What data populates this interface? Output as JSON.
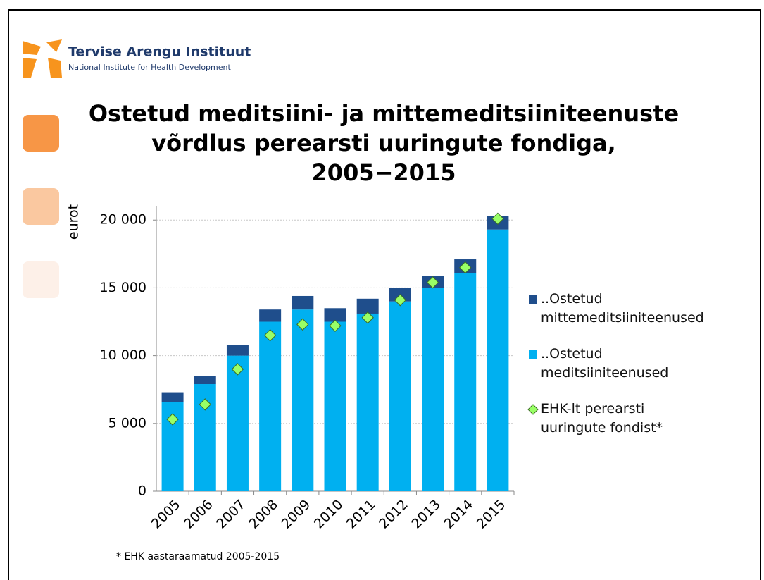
{
  "header": {
    "org_name": "Tervise Arengu Instituut",
    "org_subtitle": "National Institute for Health Development"
  },
  "chart_data": {
    "type": "stacked_bar",
    "title": "Ostetud meditsiini- ja mittemeditsiiniteenuste\nvõrdlus perearsti uuringute fondiga,\n2005−2015",
    "y_label": "eurot",
    "categories": [
      "2005",
      "2006",
      "2007",
      "2008",
      "2009",
      "2010",
      "2011",
      "2012",
      "2013",
      "2014",
      "2015"
    ],
    "series": [
      {
        "name": "..Ostetud meditsiiniteenused",
        "color": "#00b0f0",
        "values": [
          6600,
          7900,
          10000,
          12500,
          13400,
          12500,
          13100,
          14000,
          15000,
          16100,
          19300
        ]
      },
      {
        "name": "..Ostetud mittemeditsiiniteenused",
        "color": "#1f4e8c",
        "values": [
          700,
          600,
          800,
          900,
          1000,
          1000,
          1100,
          1000,
          900,
          1000,
          1000
        ]
      },
      {
        "name": "EHK-lt perearsti uuringute fondist*",
        "color": "#99ff66",
        "type": "scatter",
        "values": [
          5300,
          6400,
          9000,
          11500,
          12300,
          12200,
          12800,
          14100,
          15400,
          16500,
          20100
        ]
      }
    ],
    "ylim": [
      0,
      21000
    ],
    "yticks": [
      0,
      {
        "value": 5000,
        "label": "5 000"
      },
      {
        "value": 10000,
        "label": "10 000"
      },
      {
        "value": 15000,
        "label": "15 000"
      },
      {
        "value": 20000,
        "label": "20 000"
      }
    ],
    "grid": true,
    "footnote": "* EHK aastaraamatud 2005-2015"
  }
}
